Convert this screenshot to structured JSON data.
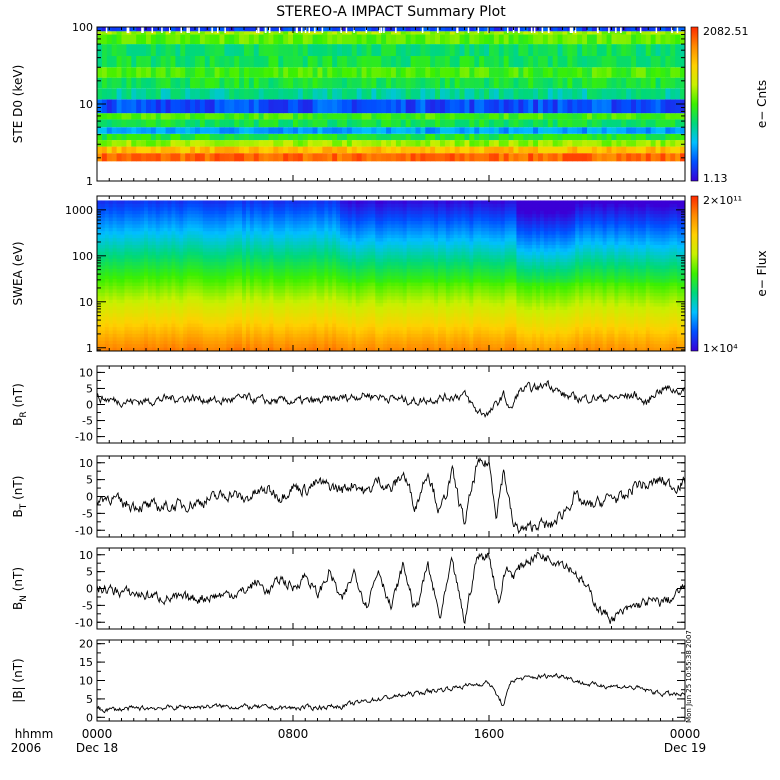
{
  "title": "STEREO-A IMPACT Summary Plot",
  "colors": {
    "background": "#ffffff",
    "axis": "#000000",
    "trace": "#000000",
    "colormap": [
      "#3a00d6",
      "#0050ff",
      "#00bfff",
      "#00d87a",
      "#3cf000",
      "#c8f000",
      "#ffd000",
      "#ff8a00",
      "#ff2a00"
    ]
  },
  "time_axis": {
    "row1": [
      "hhmm",
      "0000",
      "0800",
      "1600",
      "0000"
    ],
    "row2": [
      "2006",
      "Dec 18",
      "",
      "",
      "Dec 19"
    ],
    "tick_hours": [
      0,
      8,
      16,
      24
    ],
    "range_hours": [
      0,
      24
    ]
  },
  "stamp": "Mon Jun 25 10:55:38 2007",
  "chart_data": [
    {
      "type": "heatmap",
      "name": "ste",
      "ylabel": "STE D0 (keV)",
      "yscale": "log",
      "ylim": [
        1,
        100
      ],
      "yticks": [
        "1",
        "10",
        "100"
      ],
      "colorbar": {
        "label": "e− Cnts",
        "max": "2082.51",
        "min": "1.13"
      },
      "bands": [
        {
          "lo": 1.8,
          "hi": 2.3,
          "level": 0.92
        },
        {
          "lo": 2.3,
          "hi": 2.8,
          "level": 0.78
        },
        {
          "lo": 2.8,
          "hi": 3.4,
          "level": 0.58
        },
        {
          "lo": 3.4,
          "hi": 4.1,
          "level": 0.45
        },
        {
          "lo": 4.1,
          "hi": 5.0,
          "level": 0.22
        },
        {
          "lo": 5.0,
          "hi": 6.3,
          "level": 0.42
        },
        {
          "lo": 6.3,
          "hi": 7.6,
          "level": 0.5
        },
        {
          "lo": 7.6,
          "hi": 11.5,
          "level": 0.12
        },
        {
          "lo": 11.5,
          "hi": 16,
          "level": 0.35
        },
        {
          "lo": 16,
          "hi": 22,
          "level": 0.43
        },
        {
          "lo": 22,
          "hi": 30,
          "level": 0.5
        },
        {
          "lo": 30,
          "hi": 42,
          "level": 0.42
        },
        {
          "lo": 42,
          "hi": 60,
          "level": 0.4
        },
        {
          "lo": 60,
          "hi": 80,
          "level": 0.52
        },
        {
          "lo": 80,
          "hi": 88,
          "level": 0.58
        },
        {
          "lo": 88,
          "hi": 100,
          "level": 0.1
        }
      ]
    },
    {
      "type": "heatmap",
      "name": "swea",
      "ylabel": "SWEA (eV)",
      "yscale": "log",
      "ylim": [
        0.85,
        2000
      ],
      "yticks": [
        "1",
        "10",
        "100",
        "1000"
      ],
      "colorbar": {
        "label": "e− Flux",
        "max": "2×10¹¹",
        "min": "1×10⁴"
      },
      "data_top": 1600,
      "segments": [
        {
          "start": 0,
          "end": 10,
          "offset": 0
        },
        {
          "start": 10,
          "end": 17.1,
          "offset": -0.07
        },
        {
          "start": 17.1,
          "end": 19.6,
          "offset": -0.15
        },
        {
          "start": 19.6,
          "end": 24,
          "offset": -0.1
        }
      ]
    },
    {
      "type": "line",
      "name": "br",
      "ylabel": "B_R (nT)",
      "ylim": [
        -12,
        12
      ],
      "yticks": [
        10,
        5,
        0,
        -5,
        -10
      ],
      "x_range": [
        0,
        24
      ],
      "keyframes": [
        [
          0,
          2
        ],
        [
          1,
          1
        ],
        [
          2,
          1
        ],
        [
          3,
          2
        ],
        [
          4,
          2
        ],
        [
          5,
          1
        ],
        [
          6,
          2
        ],
        [
          7,
          1
        ],
        [
          8,
          1
        ],
        [
          9,
          1
        ],
        [
          10,
          2
        ],
        [
          11,
          3
        ],
        [
          12,
          2
        ],
        [
          13,
          1
        ],
        [
          14,
          2
        ],
        [
          15,
          3
        ],
        [
          15.5,
          -2
        ],
        [
          16,
          -3
        ],
        [
          16.3,
          0
        ],
        [
          16.6,
          3
        ],
        [
          16.9,
          -2
        ],
        [
          17.2,
          4
        ],
        [
          17.6,
          5
        ],
        [
          18,
          5
        ],
        [
          18.4,
          7
        ],
        [
          19,
          3
        ],
        [
          19.5,
          2
        ],
        [
          20,
          2
        ],
        [
          21,
          2
        ],
        [
          22,
          3
        ],
        [
          22.4,
          0
        ],
        [
          22.8,
          4
        ],
        [
          23.2,
          5
        ],
        [
          24,
          4
        ]
      ],
      "noise": 1.2
    },
    {
      "type": "line",
      "name": "bt",
      "ylabel": "B_T (nT)",
      "ylim": [
        -12,
        12
      ],
      "yticks": [
        10,
        5,
        0,
        -5,
        -10
      ],
      "x_range": [
        0,
        24
      ],
      "keyframes": [
        [
          0,
          -1
        ],
        [
          0.5,
          0
        ],
        [
          1,
          -2
        ],
        [
          2,
          -3
        ],
        [
          3,
          -3
        ],
        [
          4,
          -2
        ],
        [
          5,
          0
        ],
        [
          5.5,
          1
        ],
        [
          6,
          -1
        ],
        [
          6.5,
          1
        ],
        [
          7,
          2
        ],
        [
          7.5,
          0
        ],
        [
          8,
          3
        ],
        [
          8.5,
          2
        ],
        [
          9,
          4
        ],
        [
          9.5,
          3
        ],
        [
          10,
          2
        ],
        [
          10.5,
          4
        ],
        [
          11,
          1
        ],
        [
          11.5,
          5
        ],
        [
          12,
          2
        ],
        [
          12.5,
          7
        ],
        [
          13,
          -3
        ],
        [
          13.5,
          8
        ],
        [
          14,
          -5
        ],
        [
          14.5,
          7
        ],
        [
          15,
          -8
        ],
        [
          15.5,
          9
        ],
        [
          16,
          10
        ],
        [
          16.3,
          -5
        ],
        [
          16.6,
          8
        ],
        [
          17,
          -9
        ],
        [
          17.5,
          -10
        ],
        [
          18,
          -8
        ],
        [
          18.5,
          -9
        ],
        [
          19,
          -5
        ],
        [
          19.5,
          0
        ],
        [
          20,
          -3
        ],
        [
          20.5,
          -2
        ],
        [
          21,
          0
        ],
        [
          21.5,
          -1
        ],
        [
          22,
          4
        ],
        [
          22.5,
          3
        ],
        [
          23,
          5
        ],
        [
          23.5,
          3
        ],
        [
          24,
          4
        ]
      ],
      "noise": 1.6
    },
    {
      "type": "line",
      "name": "bn",
      "ylabel": "B_N (nT)",
      "ylim": [
        -12,
        12
      ],
      "yticks": [
        10,
        5,
        0,
        -5,
        -10
      ],
      "x_range": [
        0,
        24
      ],
      "keyframes": [
        [
          0,
          0
        ],
        [
          1,
          -1
        ],
        [
          2,
          -2
        ],
        [
          3,
          -3
        ],
        [
          4,
          -3
        ],
        [
          5,
          -2
        ],
        [
          6,
          -1
        ],
        [
          6.5,
          2
        ],
        [
          7,
          -1
        ],
        [
          7.5,
          3
        ],
        [
          8,
          0
        ],
        [
          8.5,
          4
        ],
        [
          9,
          -2
        ],
        [
          9.5,
          5
        ],
        [
          10,
          -4
        ],
        [
          10.5,
          5
        ],
        [
          11,
          -5
        ],
        [
          11.5,
          6
        ],
        [
          12,
          -6
        ],
        [
          12.5,
          7
        ],
        [
          13,
          -7
        ],
        [
          13.5,
          7
        ],
        [
          14,
          -9
        ],
        [
          14.5,
          8
        ],
        [
          15,
          -10
        ],
        [
          15.5,
          9
        ],
        [
          16,
          10
        ],
        [
          16.4,
          -4
        ],
        [
          16.7,
          6
        ],
        [
          17,
          4
        ],
        [
          17.5,
          8
        ],
        [
          18,
          10
        ],
        [
          18.5,
          9
        ],
        [
          19,
          8
        ],
        [
          19.5,
          5
        ],
        [
          20,
          0
        ],
        [
          20.5,
          -6
        ],
        [
          21,
          -9
        ],
        [
          21.5,
          -7
        ],
        [
          22,
          -5
        ],
        [
          22.5,
          -4
        ],
        [
          23,
          -4
        ],
        [
          23.5,
          -3
        ],
        [
          24,
          1
        ]
      ],
      "noise": 1.4
    },
    {
      "type": "line",
      "name": "bmag",
      "ylabel": "|B| (nT)",
      "ylim": [
        -1,
        21
      ],
      "yticks": [
        20,
        15,
        10,
        5,
        0
      ],
      "x_range": [
        0,
        24
      ],
      "keyframes": [
        [
          0,
          2
        ],
        [
          2,
          2.5
        ],
        [
          5,
          3
        ],
        [
          8,
          2.5
        ],
        [
          10,
          3
        ],
        [
          11,
          4.5
        ],
        [
          12,
          5.5
        ],
        [
          13,
          6.5
        ],
        [
          14,
          7.5
        ],
        [
          15,
          8.5
        ],
        [
          16,
          9.5
        ],
        [
          16.6,
          3
        ],
        [
          16.9,
          10
        ],
        [
          17.3,
          10.5
        ],
        [
          18,
          11
        ],
        [
          19,
          11.5
        ],
        [
          19.5,
          10
        ],
        [
          20,
          9
        ],
        [
          21,
          8.5
        ],
        [
          22,
          8
        ],
        [
          23,
          6.5
        ],
        [
          24,
          6
        ]
      ],
      "noise": 0.6
    }
  ]
}
